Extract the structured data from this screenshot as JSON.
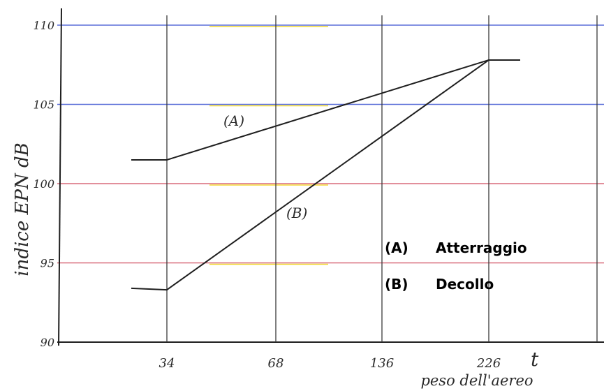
{
  "chart_data": {
    "type": "line",
    "ylabel": "indice  EPN dB",
    "xlabel": "peso dell'aereo",
    "x_unit": "t",
    "x_ticks": [
      "34",
      "68",
      "136",
      "226"
    ],
    "y_ticks": [
      90,
      95,
      100,
      105,
      110
    ],
    "ylim": [
      90,
      111
    ],
    "grid": true,
    "series": [
      {
        "name": "(A)",
        "x": [
          "20",
          "34",
          "226",
          "250"
        ],
        "values": [
          101.5,
          101.5,
          107.8,
          107.8
        ]
      },
      {
        "name": "(B)",
        "x": [
          "20",
          "34",
          "226"
        ],
        "values": [
          93.4,
          93.3,
          107.8
        ]
      }
    ],
    "legend": {
      "position": "right",
      "entries": [
        {
          "key": "(A)",
          "label": "Atterraggio"
        },
        {
          "key": "(B)",
          "label": "Decollo"
        }
      ]
    },
    "colors": {
      "line": "#1f1f1f",
      "gridline_blue": "#5a6fd8",
      "gridline_red": "#d86a7a",
      "gridline_yellow": "#f0d000"
    }
  }
}
